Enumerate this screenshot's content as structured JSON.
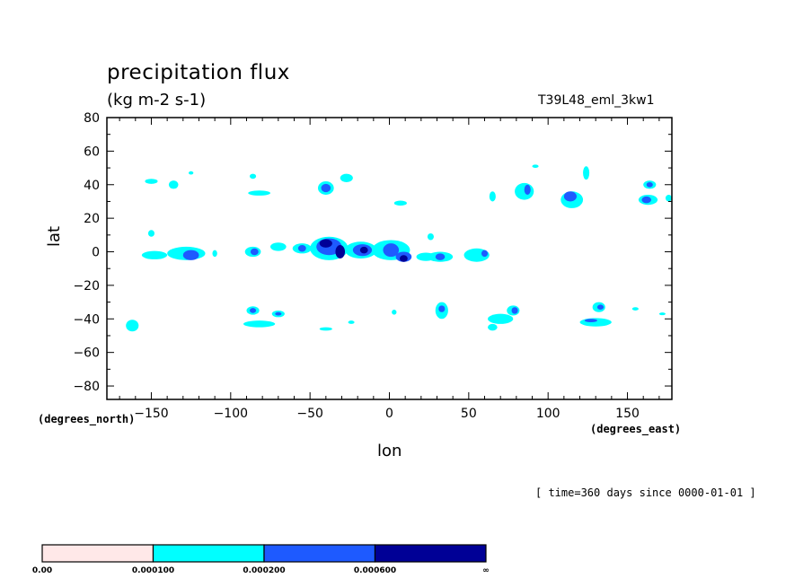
{
  "chart_data": {
    "type": "heatmap",
    "title": "precipitation flux",
    "units": "(kg m-2 s-1)",
    "run_name": "T39L48_eml_3kw1",
    "xlabel": "lon",
    "ylabel": "lat",
    "x_coord_units": "(degrees_east)",
    "y_coord_units": "(degrees_north)",
    "time_info": "[ time=360 days since 0000-01-01 ]",
    "xlim": [
      -178,
      178
    ],
    "ylim": [
      -88,
      80
    ],
    "x_ticks": [
      -150,
      -100,
      -50,
      0,
      50,
      100,
      150
    ],
    "x_tick_labels": [
      "−150",
      "−100",
      "−50",
      "0",
      "50",
      "100",
      "150"
    ],
    "y_ticks": [
      80,
      60,
      40,
      20,
      0,
      -20,
      -40,
      -60,
      -80
    ],
    "y_tick_labels": [
      "80",
      "60",
      "40",
      "20",
      "0",
      "−20",
      "−40",
      "−60",
      "−80"
    ],
    "levels": [
      0.0,
      0.0001,
      0.0002,
      0.0006
    ],
    "level_labels": [
      "0.00",
      "0.000100",
      "0.000200",
      "0.000600",
      "∞"
    ],
    "level_colors": [
      "#ffe8e8",
      "#00ffff",
      "#1e5aff",
      "#000096"
    ],
    "cells": [
      {
        "lon": -128,
        "lat": -1,
        "rx": 12,
        "ry": 4,
        "level": 1
      },
      {
        "lon": -125,
        "lat": -2,
        "rx": 5,
        "ry": 3,
        "level": 2
      },
      {
        "lon": -148,
        "lat": -2,
        "rx": 8,
        "ry": 2.5,
        "level": 1
      },
      {
        "lon": -86,
        "lat": 0,
        "rx": 5,
        "ry": 3,
        "level": 1
      },
      {
        "lon": -85,
        "lat": 0,
        "rx": 2.5,
        "ry": 2,
        "level": 2
      },
      {
        "lon": -70,
        "lat": 3,
        "rx": 5,
        "ry": 2.5,
        "level": 1
      },
      {
        "lon": -55,
        "lat": 2,
        "rx": 6,
        "ry": 3,
        "level": 1
      },
      {
        "lon": -55,
        "lat": 2,
        "rx": 2.5,
        "ry": 2,
        "level": 2
      },
      {
        "lon": -38,
        "lat": 2,
        "rx": 12,
        "ry": 7,
        "level": 1
      },
      {
        "lon": -38,
        "lat": 3,
        "rx": 8,
        "ry": 5,
        "level": 2
      },
      {
        "lon": -40,
        "lat": 5,
        "rx": 4,
        "ry": 2.5,
        "level": 3
      },
      {
        "lon": -31,
        "lat": 0,
        "rx": 3,
        "ry": 4,
        "level": 3
      },
      {
        "lon": -18,
        "lat": 1,
        "rx": 10,
        "ry": 5,
        "level": 1
      },
      {
        "lon": -17,
        "lat": 1,
        "rx": 6,
        "ry": 3.5,
        "level": 2
      },
      {
        "lon": -16,
        "lat": 1,
        "rx": 2.5,
        "ry": 2,
        "level": 3
      },
      {
        "lon": 1,
        "lat": 1,
        "rx": 12,
        "ry": 6,
        "level": 1
      },
      {
        "lon": 1,
        "lat": 1,
        "rx": 5,
        "ry": 4,
        "level": 2
      },
      {
        "lon": 9,
        "lat": -3,
        "rx": 5,
        "ry": 3,
        "level": 2
      },
      {
        "lon": 9,
        "lat": -4,
        "rx": 2.5,
        "ry": 2,
        "level": 3
      },
      {
        "lon": 32,
        "lat": -3,
        "rx": 8,
        "ry": 3,
        "level": 1
      },
      {
        "lon": 32,
        "lat": -3,
        "rx": 3,
        "ry": 2,
        "level": 2
      },
      {
        "lon": 55,
        "lat": -2,
        "rx": 8,
        "ry": 4,
        "level": 1
      },
      {
        "lon": 60,
        "lat": -1,
        "rx": 2,
        "ry": 2,
        "level": 2
      },
      {
        "lon": 23,
        "lat": -3,
        "rx": 6,
        "ry": 2.5,
        "level": 1
      },
      {
        "lon": 26,
        "lat": 9,
        "rx": 2,
        "ry": 2,
        "level": 1
      },
      {
        "lon": -150,
        "lat": 11,
        "rx": 2,
        "ry": 2,
        "level": 1
      },
      {
        "lon": -110,
        "lat": -1,
        "rx": 1.5,
        "ry": 2,
        "level": 1
      },
      {
        "lon": -40,
        "lat": 38,
        "rx": 5,
        "ry": 4,
        "level": 1
      },
      {
        "lon": -40,
        "lat": 38,
        "rx": 3,
        "ry": 2.5,
        "level": 2
      },
      {
        "lon": -27,
        "lat": 44,
        "rx": 4,
        "ry": 2.5,
        "level": 1
      },
      {
        "lon": 7,
        "lat": 29,
        "rx": 4,
        "ry": 1.5,
        "level": 1
      },
      {
        "lon": -82,
        "lat": 35,
        "rx": 7,
        "ry": 1.5,
        "level": 1
      },
      {
        "lon": -86,
        "lat": 45,
        "rx": 2,
        "ry": 1.5,
        "level": 1
      },
      {
        "lon": -150,
        "lat": 42,
        "rx": 4,
        "ry": 1.5,
        "level": 1
      },
      {
        "lon": -136,
        "lat": 40,
        "rx": 3,
        "ry": 2.5,
        "level": 1
      },
      {
        "lon": -125,
        "lat": 47,
        "rx": 1.5,
        "ry": 1,
        "level": 1
      },
      {
        "lon": 65,
        "lat": 33,
        "rx": 2,
        "ry": 3,
        "level": 1
      },
      {
        "lon": 85,
        "lat": 36,
        "rx": 6,
        "ry": 5,
        "level": 1
      },
      {
        "lon": 87,
        "lat": 37,
        "rx": 2,
        "ry": 3,
        "level": 2
      },
      {
        "lon": 92,
        "lat": 51,
        "rx": 2,
        "ry": 1,
        "level": 1
      },
      {
        "lon": 115,
        "lat": 31,
        "rx": 7,
        "ry": 5,
        "level": 1
      },
      {
        "lon": 114,
        "lat": 33,
        "rx": 4,
        "ry": 3,
        "level": 2
      },
      {
        "lon": 124,
        "lat": 47,
        "rx": 2,
        "ry": 4,
        "level": 1
      },
      {
        "lon": 164,
        "lat": 40,
        "rx": 4,
        "ry": 2.5,
        "level": 1
      },
      {
        "lon": 164,
        "lat": 40,
        "rx": 2,
        "ry": 1.5,
        "level": 2
      },
      {
        "lon": 163,
        "lat": 31,
        "rx": 6,
        "ry": 3,
        "level": 1
      },
      {
        "lon": 162,
        "lat": 31,
        "rx": 3,
        "ry": 2,
        "level": 2
      },
      {
        "lon": 176,
        "lat": 32,
        "rx": 2,
        "ry": 2,
        "level": 1
      },
      {
        "lon": -162,
        "lat": -44,
        "rx": 4,
        "ry": 3.5,
        "level": 1
      },
      {
        "lon": -86,
        "lat": -35,
        "rx": 4,
        "ry": 2.5,
        "level": 1
      },
      {
        "lon": -86,
        "lat": -35,
        "rx": 2,
        "ry": 1.5,
        "level": 2
      },
      {
        "lon": -82,
        "lat": -43,
        "rx": 10,
        "ry": 2,
        "level": 1
      },
      {
        "lon": -70,
        "lat": -37,
        "rx": 4,
        "ry": 2,
        "level": 1
      },
      {
        "lon": -70,
        "lat": -37,
        "rx": 2,
        "ry": 1,
        "level": 2
      },
      {
        "lon": -40,
        "lat": -46,
        "rx": 4,
        "ry": 1,
        "level": 1
      },
      {
        "lon": -24,
        "lat": -42,
        "rx": 2,
        "ry": 1,
        "level": 1
      },
      {
        "lon": 3,
        "lat": -36,
        "rx": 1.5,
        "ry": 1.5,
        "level": 1
      },
      {
        "lon": 33,
        "lat": -35,
        "rx": 4,
        "ry": 5,
        "level": 1
      },
      {
        "lon": 33,
        "lat": -34,
        "rx": 2,
        "ry": 2,
        "level": 2
      },
      {
        "lon": 70,
        "lat": -40,
        "rx": 8,
        "ry": 3,
        "level": 1
      },
      {
        "lon": 78,
        "lat": -35,
        "rx": 4,
        "ry": 3,
        "level": 1
      },
      {
        "lon": 79,
        "lat": -35,
        "rx": 2,
        "ry": 2,
        "level": 2
      },
      {
        "lon": 65,
        "lat": -45,
        "rx": 3,
        "ry": 2,
        "level": 1
      },
      {
        "lon": 132,
        "lat": -33,
        "rx": 4,
        "ry": 3,
        "level": 1
      },
      {
        "lon": 133,
        "lat": -33,
        "rx": 2,
        "ry": 1.5,
        "level": 2
      },
      {
        "lon": 130,
        "lat": -42,
        "rx": 10,
        "ry": 2.5,
        "level": 1
      },
      {
        "lon": 127,
        "lat": -41,
        "rx": 4,
        "ry": 1,
        "level": 2
      },
      {
        "lon": 155,
        "lat": -34,
        "rx": 2,
        "ry": 1,
        "level": 1
      },
      {
        "lon": 172,
        "lat": -37,
        "rx": 2,
        "ry": 0.8,
        "level": 1
      }
    ]
  }
}
